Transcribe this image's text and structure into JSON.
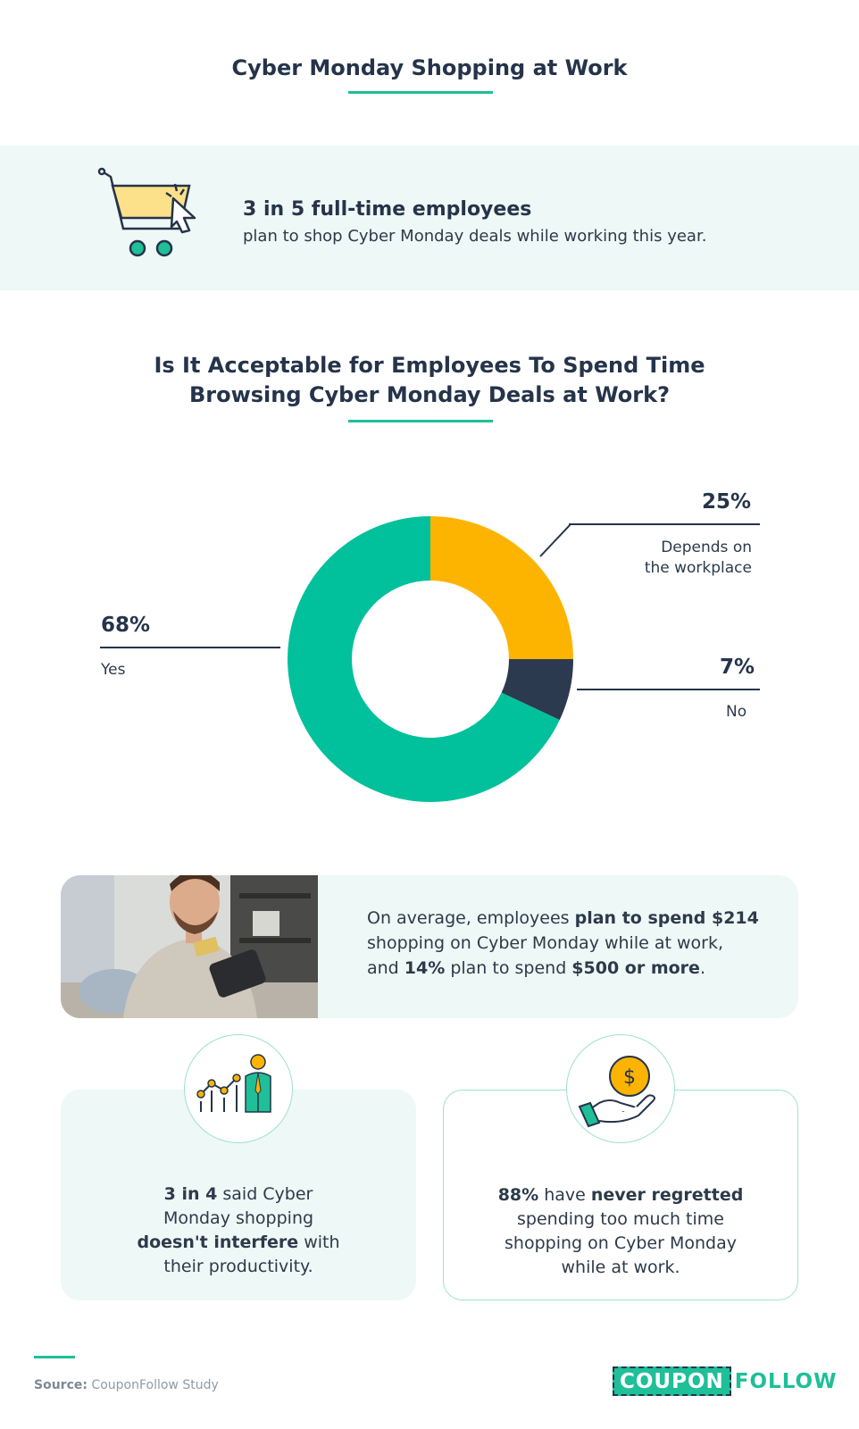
{
  "title": "Cyber Monday Shopping at Work",
  "intro_stat": {
    "headline": "3 in 5 full-time employees",
    "subtext": "plan to shop Cyber Monday deals while working this year."
  },
  "chart_data": {
    "type": "pie",
    "title": "Is It Acceptable for Employees To Spend Time Browsing Cyber Monday Deals at Work?",
    "title_line1": "Is It Acceptable for Employees To Spend Time",
    "title_line2": "Browsing Cyber Monday Deals at Work?",
    "categories": [
      "Depends on the workplace",
      "No",
      "Yes"
    ],
    "values": [
      25,
      7,
      68
    ],
    "colors": [
      "#fdb400",
      "#2c3a4f",
      "#00c19b"
    ],
    "labels": {
      "depends": {
        "pct": "25%",
        "line1": "Depends on",
        "line2": "the workplace"
      },
      "no": {
        "pct": "7%",
        "text": "No"
      },
      "yes": {
        "pct": "68%",
        "text": "Yes"
      }
    }
  },
  "spend_card": {
    "p1": "On average, employees ",
    "p1_bold": "plan to spend $214",
    "p2": "shopping on Cyber Monday while at work,",
    "p3": "and ",
    "p3_bold": "14%",
    "p4": " plan to spend ",
    "p4_bold": "$500 or more",
    "p5": "."
  },
  "productivity_card": {
    "icon": "growth-chart-person-icon",
    "bold1": "3 in 4",
    "t1": " said Cyber",
    "t2": "Monday shopping",
    "bold2": "doesn't interfere",
    "t3": " with",
    "t4": "their productivity."
  },
  "regret_card": {
    "icon": "hand-coin-dollar-icon",
    "bold1": "88%",
    "t1": " have ",
    "bold2": "never regretted",
    "t2": "spending too much time",
    "t3": "shopping on Cyber Monday",
    "t4": "while at work."
  },
  "footer": {
    "source_label": "Source:",
    "source_text": " CouponFollow Study",
    "logo_coupon": "COUPON",
    "logo_follow": "FOLLOW"
  }
}
